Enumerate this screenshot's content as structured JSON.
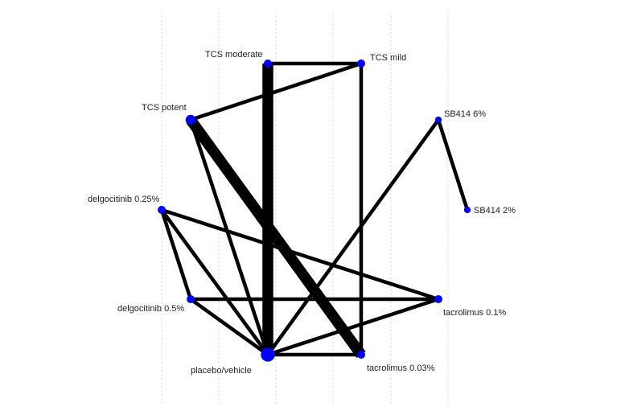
{
  "diagram": {
    "type": "network-meta-analysis-graph",
    "node_color": "#0000ff",
    "edge_color": "#000000",
    "nodes": [
      {
        "id": "placebo",
        "label": "placebo/vehicle",
        "size": 5
      },
      {
        "id": "tcs_moderate",
        "label": "TCS moderate",
        "size": 1
      },
      {
        "id": "tcs_mild",
        "label": "TCS mild",
        "size": 1
      },
      {
        "id": "tcs_potent",
        "label": "TCS potent",
        "size": 2
      },
      {
        "id": "sb414_6",
        "label": "SB414 6%",
        "size": 0.5
      },
      {
        "id": "sb414_2",
        "label": "SB414 2%",
        "size": 0.5
      },
      {
        "id": "delgo_025",
        "label": "delgocitinib 0.25%",
        "size": 1
      },
      {
        "id": "delgo_05",
        "label": "delgocitinib 0.5%",
        "size": 1
      },
      {
        "id": "tacro_01",
        "label": "tacrolimus 0.1%",
        "size": 1
      },
      {
        "id": "tacro_003",
        "label": "tacrolimus 0.03%",
        "size": 1
      }
    ],
    "edges": [
      {
        "from": "tcs_moderate",
        "to": "placebo",
        "weight": 3
      },
      {
        "from": "tcs_potent",
        "to": "tacro_003",
        "weight": 3
      },
      {
        "from": "tcs_moderate",
        "to": "tcs_mild",
        "weight": 1
      },
      {
        "from": "tcs_potent",
        "to": "tcs_mild",
        "weight": 1
      },
      {
        "from": "tcs_mild",
        "to": "tacro_003",
        "weight": 1
      },
      {
        "from": "tcs_potent",
        "to": "placebo",
        "weight": 1
      },
      {
        "from": "sb414_6",
        "to": "sb414_2",
        "weight": 1
      },
      {
        "from": "sb414_6",
        "to": "placebo",
        "weight": 1
      },
      {
        "from": "delgo_025",
        "to": "delgo_05",
        "weight": 1
      },
      {
        "from": "delgo_025",
        "to": "placebo",
        "weight": 1
      },
      {
        "from": "delgo_025",
        "to": "tacro_01",
        "weight": 1
      },
      {
        "from": "delgo_05",
        "to": "tacro_01",
        "weight": 1
      },
      {
        "from": "delgo_05",
        "to": "placebo",
        "weight": 1
      },
      {
        "from": "tacro_01",
        "to": "placebo",
        "weight": 1
      },
      {
        "from": "tacro_003",
        "to": "placebo",
        "weight": 1
      }
    ]
  }
}
